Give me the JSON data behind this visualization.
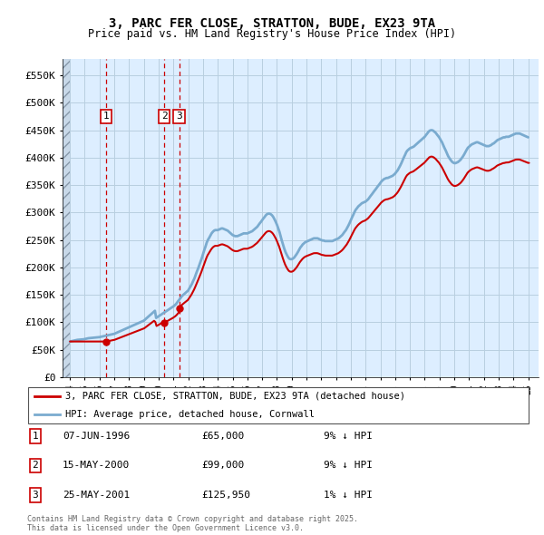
{
  "title": "3, PARC FER CLOSE, STRATTON, BUDE, EX23 9TA",
  "subtitle": "Price paid vs. HM Land Registry's House Price Index (HPI)",
  "ylim": [
    0,
    580000
  ],
  "yticks": [
    0,
    50000,
    100000,
    150000,
    200000,
    250000,
    300000,
    350000,
    400000,
    450000,
    500000,
    550000
  ],
  "ytick_labels": [
    "£0",
    "£50K",
    "£100K",
    "£150K",
    "£200K",
    "£250K",
    "£300K",
    "£350K",
    "£400K",
    "£450K",
    "£500K",
    "£550K"
  ],
  "sales": [
    {
      "date": 1996.44,
      "price": 65000,
      "label": "1"
    },
    {
      "date": 2000.37,
      "price": 99000,
      "label": "2"
    },
    {
      "date": 2001.39,
      "price": 125950,
      "label": "3"
    }
  ],
  "hpi_line_color": "#7aabcf",
  "property_line_color": "#cc0000",
  "sale_marker_color": "#cc0000",
  "dashed_line_color": "#cc0000",
  "box_color": "#cc0000",
  "grid_color": "#b8cfe0",
  "legend_items": [
    {
      "label": "3, PARC FER CLOSE, STRATTON, BUDE, EX23 9TA (detached house)",
      "color": "#cc0000"
    },
    {
      "label": "HPI: Average price, detached house, Cornwall",
      "color": "#7aabcf"
    }
  ],
  "table_rows": [
    {
      "num": "1",
      "date": "07-JUN-1996",
      "price": "£65,000",
      "hpi": "9% ↓ HPI"
    },
    {
      "num": "2",
      "date": "15-MAY-2000",
      "price": "£99,000",
      "hpi": "9% ↓ HPI"
    },
    {
      "num": "3",
      "date": "25-MAY-2001",
      "price": "£125,950",
      "hpi": "1% ↓ HPI"
    }
  ],
  "footnote": "Contains HM Land Registry data © Crown copyright and database right 2025.\nThis data is licensed under the Open Government Licence v3.0.",
  "xlim_start": 1993.5,
  "xlim_end": 2025.7,
  "hpi_data_x": [
    1994.0,
    1994.08,
    1994.17,
    1994.25,
    1994.33,
    1994.42,
    1994.5,
    1994.58,
    1994.67,
    1994.75,
    1994.83,
    1994.92,
    1995.0,
    1995.08,
    1995.17,
    1995.25,
    1995.33,
    1995.42,
    1995.5,
    1995.58,
    1995.67,
    1995.75,
    1995.83,
    1995.92,
    1996.0,
    1996.08,
    1996.17,
    1996.25,
    1996.33,
    1996.42,
    1996.5,
    1996.58,
    1996.67,
    1996.75,
    1996.83,
    1996.92,
    1997.0,
    1997.08,
    1997.17,
    1997.25,
    1997.33,
    1997.42,
    1997.5,
    1997.58,
    1997.67,
    1997.75,
    1997.83,
    1997.92,
    1998.0,
    1998.08,
    1998.17,
    1998.25,
    1998.33,
    1998.42,
    1998.5,
    1998.58,
    1998.67,
    1998.75,
    1998.83,
    1998.92,
    1999.0,
    1999.08,
    1999.17,
    1999.25,
    1999.33,
    1999.42,
    1999.5,
    1999.58,
    1999.67,
    1999.75,
    1999.83,
    1999.92,
    2000.0,
    2000.08,
    2000.17,
    2000.25,
    2000.33,
    2000.42,
    2000.5,
    2000.58,
    2000.67,
    2000.75,
    2000.83,
    2000.92,
    2001.0,
    2001.08,
    2001.17,
    2001.25,
    2001.33,
    2001.42,
    2001.5,
    2001.58,
    2001.67,
    2001.75,
    2001.83,
    2001.92,
    2002.0,
    2002.08,
    2002.17,
    2002.25,
    2002.33,
    2002.42,
    2002.5,
    2002.58,
    2002.67,
    2002.75,
    2002.83,
    2002.92,
    2003.0,
    2003.08,
    2003.17,
    2003.25,
    2003.33,
    2003.42,
    2003.5,
    2003.58,
    2003.67,
    2003.75,
    2003.83,
    2003.92,
    2004.0,
    2004.08,
    2004.17,
    2004.25,
    2004.33,
    2004.42,
    2004.5,
    2004.58,
    2004.67,
    2004.75,
    2004.83,
    2004.92,
    2005.0,
    2005.08,
    2005.17,
    2005.25,
    2005.33,
    2005.42,
    2005.5,
    2005.58,
    2005.67,
    2005.75,
    2005.83,
    2005.92,
    2006.0,
    2006.08,
    2006.17,
    2006.25,
    2006.33,
    2006.42,
    2006.5,
    2006.58,
    2006.67,
    2006.75,
    2006.83,
    2006.92,
    2007.0,
    2007.08,
    2007.17,
    2007.25,
    2007.33,
    2007.42,
    2007.5,
    2007.58,
    2007.67,
    2007.75,
    2007.83,
    2007.92,
    2008.0,
    2008.08,
    2008.17,
    2008.25,
    2008.33,
    2008.42,
    2008.5,
    2008.58,
    2008.67,
    2008.75,
    2008.83,
    2008.92,
    2009.0,
    2009.08,
    2009.17,
    2009.25,
    2009.33,
    2009.42,
    2009.5,
    2009.58,
    2009.67,
    2009.75,
    2009.83,
    2009.92,
    2010.0,
    2010.08,
    2010.17,
    2010.25,
    2010.33,
    2010.42,
    2010.5,
    2010.58,
    2010.67,
    2010.75,
    2010.83,
    2010.92,
    2011.0,
    2011.08,
    2011.17,
    2011.25,
    2011.33,
    2011.42,
    2011.5,
    2011.58,
    2011.67,
    2011.75,
    2011.83,
    2011.92,
    2012.0,
    2012.08,
    2012.17,
    2012.25,
    2012.33,
    2012.42,
    2012.5,
    2012.58,
    2012.67,
    2012.75,
    2012.83,
    2012.92,
    2013.0,
    2013.08,
    2013.17,
    2013.25,
    2013.33,
    2013.42,
    2013.5,
    2013.58,
    2013.67,
    2013.75,
    2013.83,
    2013.92,
    2014.0,
    2014.08,
    2014.17,
    2014.25,
    2014.33,
    2014.42,
    2014.5,
    2014.58,
    2014.67,
    2014.75,
    2014.83,
    2014.92,
    2015.0,
    2015.08,
    2015.17,
    2015.25,
    2015.33,
    2015.42,
    2015.5,
    2015.58,
    2015.67,
    2015.75,
    2015.83,
    2015.92,
    2016.0,
    2016.08,
    2016.17,
    2016.25,
    2016.33,
    2016.42,
    2016.5,
    2016.58,
    2016.67,
    2016.75,
    2016.83,
    2016.92,
    2017.0,
    2017.08,
    2017.17,
    2017.25,
    2017.33,
    2017.42,
    2017.5,
    2017.58,
    2017.67,
    2017.75,
    2017.83,
    2017.92,
    2018.0,
    2018.08,
    2018.17,
    2018.25,
    2018.33,
    2018.42,
    2018.5,
    2018.58,
    2018.67,
    2018.75,
    2018.83,
    2018.92,
    2019.0,
    2019.08,
    2019.17,
    2019.25,
    2019.33,
    2019.42,
    2019.5,
    2019.58,
    2019.67,
    2019.75,
    2019.83,
    2019.92,
    2020.0,
    2020.08,
    2020.17,
    2020.25,
    2020.33,
    2020.42,
    2020.5,
    2020.58,
    2020.67,
    2020.75,
    2020.83,
    2020.92,
    2021.0,
    2021.08,
    2021.17,
    2021.25,
    2021.33,
    2021.42,
    2021.5,
    2021.58,
    2021.67,
    2021.75,
    2021.83,
    2021.92,
    2022.0,
    2022.08,
    2022.17,
    2022.25,
    2022.33,
    2022.42,
    2022.5,
    2022.58,
    2022.67,
    2022.75,
    2022.83,
    2022.92,
    2023.0,
    2023.08,
    2023.17,
    2023.25,
    2023.33,
    2023.42,
    2023.5,
    2023.58,
    2023.67,
    2023.75,
    2023.83,
    2023.92,
    2024.0,
    2024.08,
    2024.17,
    2024.25,
    2024.33,
    2024.42,
    2024.5,
    2024.58,
    2024.67,
    2024.75,
    2024.83,
    2024.92,
    2025.0
  ],
  "hpi_data_y": [
    65000,
    65500,
    66000,
    66500,
    67000,
    67500,
    68000,
    68200,
    68400,
    68600,
    68800,
    69000,
    69500,
    70000,
    70500,
    71000,
    71200,
    71400,
    71600,
    71800,
    72000,
    72200,
    72400,
    72600,
    73000,
    73500,
    74000,
    74500,
    75000,
    75500,
    76000,
    76500,
    77000,
    77500,
    78000,
    78500,
    79000,
    80000,
    81000,
    82000,
    83000,
    84000,
    85000,
    86000,
    87000,
    88000,
    89000,
    90000,
    91000,
    92000,
    93000,
    94000,
    95000,
    96000,
    97000,
    98000,
    99000,
    100000,
    101000,
    102000,
    103000,
    105000,
    107000,
    109000,
    111000,
    113000,
    115000,
    117000,
    119000,
    121000,
    108000,
    109500,
    111000,
    112500,
    114000,
    115500,
    117000,
    118500,
    120000,
    121500,
    123000,
    124500,
    126000,
    127500,
    129000,
    131000,
    133000,
    136000,
    139000,
    142000,
    145000,
    148000,
    150000,
    152000,
    154000,
    156000,
    158000,
    162000,
    166000,
    170000,
    175000,
    180000,
    186000,
    192000,
    198000,
    204000,
    210000,
    217000,
    224000,
    231000,
    238000,
    245000,
    250000,
    254000,
    258000,
    262000,
    265000,
    267000,
    268000,
    268000,
    268000,
    269000,
    270000,
    271000,
    271000,
    270000,
    269000,
    268000,
    267000,
    265000,
    263000,
    261000,
    259000,
    258000,
    257000,
    257000,
    257000,
    258000,
    259000,
    260000,
    261000,
    262000,
    262000,
    262000,
    262000,
    263000,
    264000,
    265000,
    266000,
    268000,
    270000,
    272000,
    274000,
    277000,
    280000,
    283000,
    286000,
    289000,
    292000,
    295000,
    297000,
    298000,
    298000,
    297000,
    295000,
    292000,
    288000,
    283000,
    278000,
    272000,
    265000,
    257000,
    249000,
    241000,
    234000,
    228000,
    223000,
    219000,
    216000,
    215000,
    215000,
    216000,
    218000,
    221000,
    224000,
    228000,
    232000,
    236000,
    239000,
    242000,
    244000,
    246000,
    247000,
    248000,
    249000,
    250000,
    251000,
    252000,
    253000,
    253000,
    253000,
    253000,
    252000,
    251000,
    250000,
    249000,
    249000,
    248000,
    248000,
    248000,
    248000,
    248000,
    248000,
    248000,
    249000,
    250000,
    251000,
    252000,
    253000,
    255000,
    257000,
    259000,
    262000,
    265000,
    268000,
    272000,
    276000,
    281000,
    286000,
    291000,
    296000,
    301000,
    305000,
    308000,
    311000,
    313000,
    315000,
    317000,
    318000,
    319000,
    320000,
    322000,
    324000,
    327000,
    330000,
    333000,
    336000,
    339000,
    342000,
    345000,
    348000,
    351000,
    354000,
    357000,
    359000,
    361000,
    362000,
    363000,
    363000,
    364000,
    365000,
    366000,
    367000,
    369000,
    371000,
    374000,
    377000,
    381000,
    385000,
    390000,
    395000,
    400000,
    405000,
    410000,
    413000,
    415000,
    417000,
    418000,
    419000,
    420000,
    422000,
    424000,
    426000,
    428000,
    430000,
    432000,
    434000,
    436000,
    438000,
    441000,
    444000,
    447000,
    449000,
    450000,
    450000,
    449000,
    447000,
    445000,
    442000,
    439000,
    436000,
    432000,
    428000,
    423000,
    418000,
    413000,
    408000,
    403000,
    399000,
    396000,
    393000,
    391000,
    390000,
    390000,
    391000,
    392000,
    394000,
    396000,
    399000,
    402000,
    406000,
    410000,
    414000,
    418000,
    420000,
    422000,
    424000,
    425000,
    426000,
    427000,
    428000,
    428000,
    427000,
    426000,
    425000,
    424000,
    423000,
    422000,
    421000,
    421000,
    421000,
    422000,
    423000,
    425000,
    426000,
    428000,
    430000,
    432000,
    433000,
    434000,
    435000,
    436000,
    437000,
    437000,
    438000,
    438000,
    438000,
    439000,
    440000,
    441000,
    442000,
    443000,
    444000,
    444000,
    444000,
    444000,
    443000,
    442000,
    441000,
    440000,
    439000,
    438000,
    437000,
    436000,
    435000,
    435000,
    434000,
    433000,
    432000,
    431000,
    430000,
    430000
  ]
}
